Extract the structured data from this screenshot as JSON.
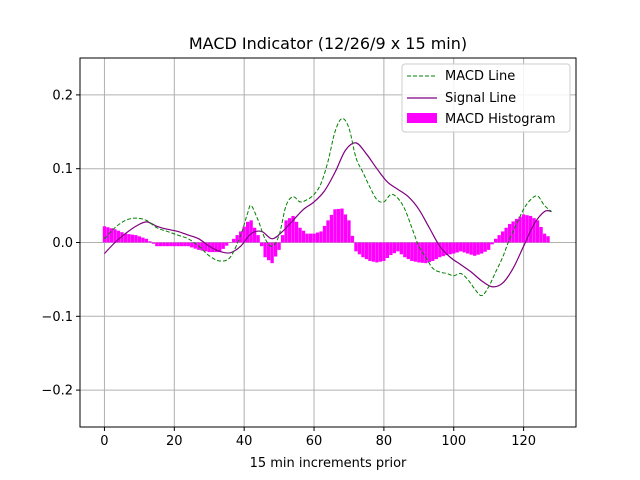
{
  "chart_data": {
    "type": "line",
    "title": "MACD Indicator (12/26/9 x 15 min)",
    "xlabel": "15 min increments prior",
    "ylabel": "",
    "xlim": [
      -7,
      135
    ],
    "ylim": [
      -0.25,
      0.25
    ],
    "xticks": [
      0,
      20,
      40,
      60,
      80,
      100,
      120
    ],
    "yticks": [
      -0.2,
      -0.1,
      0.0,
      0.1,
      0.2
    ],
    "ytick_labels": [
      "−0.2",
      "−0.1",
      "0.0",
      "0.1",
      "0.2"
    ],
    "grid": true,
    "legend_position": "top-right",
    "colors": {
      "macd": "#008000",
      "signal": "#800080",
      "histogram": "#ff00ff",
      "grid": "#b0b0b0"
    },
    "series": [
      {
        "name": "MACD Line",
        "style": "dashed",
        "x": [
          0,
          3,
          6,
          9,
          12,
          15,
          18,
          21,
          24,
          27,
          30,
          33,
          36,
          39,
          41,
          42,
          44,
          46,
          48,
          50,
          52,
          54,
          56,
          58,
          60,
          62,
          64,
          66,
          68,
          70,
          72,
          74,
          76,
          78,
          80,
          82,
          84,
          86,
          88,
          90,
          92,
          94,
          96,
          98,
          100,
          102,
          104,
          106,
          108,
          110,
          112,
          114,
          116,
          118,
          120,
          122,
          124,
          126,
          128
        ],
        "values": [
          0.005,
          0.02,
          0.03,
          0.033,
          0.03,
          0.02,
          0.015,
          0.01,
          0.005,
          -0.005,
          -0.018,
          -0.025,
          -0.02,
          0.01,
          0.04,
          0.05,
          0.03,
          0.005,
          -0.005,
          0.01,
          0.05,
          0.062,
          0.055,
          0.058,
          0.065,
          0.08,
          0.11,
          0.15,
          0.168,
          0.155,
          0.115,
          0.095,
          0.075,
          0.058,
          0.055,
          0.065,
          0.06,
          0.045,
          0.02,
          -0.005,
          -0.02,
          -0.035,
          -0.04,
          -0.042,
          -0.045,
          -0.042,
          -0.05,
          -0.063,
          -0.072,
          -0.06,
          -0.04,
          -0.02,
          0.005,
          0.025,
          0.045,
          0.058,
          0.063,
          0.05,
          0.042
        ]
      },
      {
        "name": "Signal Line",
        "style": "solid",
        "x": [
          0,
          3,
          6,
          9,
          12,
          15,
          18,
          21,
          24,
          27,
          30,
          33,
          36,
          39,
          42,
          45,
          48,
          51,
          54,
          57,
          60,
          63,
          66,
          69,
          72,
          75,
          78,
          81,
          84,
          87,
          90,
          93,
          96,
          99,
          102,
          105,
          108,
          111,
          114,
          117,
          120,
          123,
          126,
          128
        ],
        "values": [
          -0.015,
          0.0,
          0.012,
          0.022,
          0.028,
          0.022,
          0.018,
          0.015,
          0.01,
          0.005,
          -0.005,
          -0.012,
          -0.014,
          -0.005,
          0.012,
          0.015,
          0.005,
          0.015,
          0.03,
          0.045,
          0.055,
          0.07,
          0.095,
          0.125,
          0.135,
          0.12,
          0.1,
          0.082,
          0.072,
          0.062,
          0.045,
          0.02,
          -0.005,
          -0.02,
          -0.03,
          -0.04,
          -0.052,
          -0.06,
          -0.055,
          -0.035,
          -0.005,
          0.025,
          0.042,
          0.042
        ]
      },
      {
        "name": "MACD Histogram",
        "style": "bar",
        "x": [
          0,
          3,
          6,
          9,
          12,
          15,
          18,
          21,
          24,
          27,
          30,
          33,
          36,
          39,
          41,
          42,
          44,
          46,
          48,
          50,
          52,
          54,
          56,
          58,
          60,
          62,
          64,
          66,
          68,
          70,
          72,
          74,
          76,
          78,
          80,
          82,
          84,
          86,
          88,
          90,
          92,
          94,
          96,
          98,
          100,
          102,
          104,
          106,
          108,
          110,
          112,
          114,
          116,
          118,
          120,
          122,
          124,
          126,
          128
        ],
        "values": [
          0.022,
          0.018,
          0.012,
          0.01,
          0.005,
          -0.005,
          -0.005,
          -0.005,
          -0.005,
          -0.01,
          -0.013,
          -0.013,
          0.0,
          0.015,
          0.028,
          0.03,
          0.01,
          -0.02,
          -0.028,
          -0.01,
          0.03,
          0.036,
          0.02,
          0.012,
          0.012,
          0.015,
          0.03,
          0.045,
          0.046,
          0.03,
          -0.012,
          -0.02,
          -0.025,
          -0.027,
          -0.025,
          -0.017,
          -0.012,
          -0.02,
          -0.025,
          -0.027,
          -0.028,
          -0.025,
          -0.02,
          -0.017,
          -0.015,
          -0.012,
          -0.015,
          -0.018,
          -0.015,
          -0.01,
          0.005,
          0.015,
          0.025,
          0.032,
          0.038,
          0.036,
          0.03,
          0.012,
          0.005
        ]
      }
    ]
  }
}
